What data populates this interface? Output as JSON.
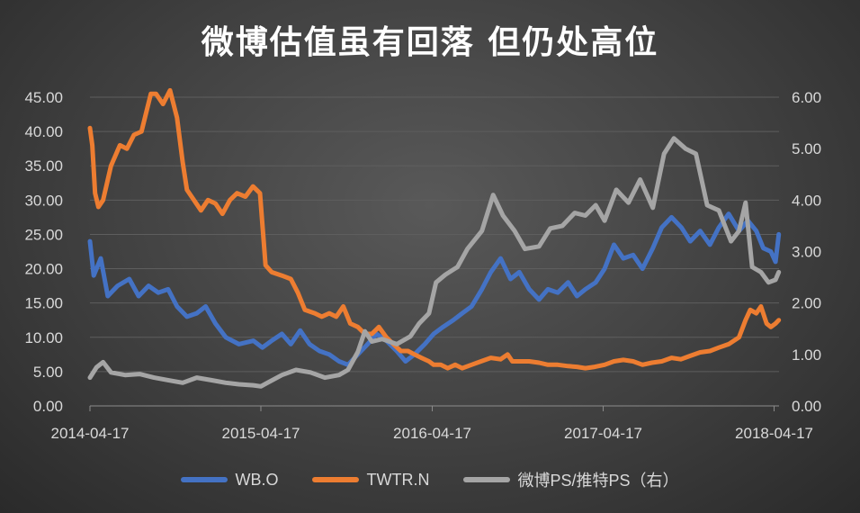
{
  "chart_data": {
    "type": "line",
    "title": "微博估值虽有回落 但仍处高位",
    "x_ticks": [
      "2014-04-17",
      "2015-04-17",
      "2016-04-17",
      "2017-04-17",
      "2018-04-17"
    ],
    "x_range": [
      "2014-04-17",
      "2018-04-27"
    ],
    "y_left": {
      "ticks": [
        "0.00",
        "5.00",
        "10.00",
        "15.00",
        "20.00",
        "25.00",
        "30.00",
        "35.00",
        "40.00",
        "45.00"
      ],
      "ylim": [
        0,
        45
      ]
    },
    "y_right": {
      "ticks": [
        "0.00",
        "1.00",
        "2.00",
        "3.00",
        "4.00",
        "5.00",
        "6.00"
      ],
      "ylim": [
        0,
        6
      ]
    },
    "grid": true,
    "legend_position": "bottom",
    "series": [
      {
        "name": "WB.O",
        "axis": "left",
        "color": "#4472C4",
        "points": [
          [
            "2014-04-17",
            24.0
          ],
          [
            "2014-04-25",
            19.0
          ],
          [
            "2014-05-10",
            21.5
          ],
          [
            "2014-05-25",
            16.0
          ],
          [
            "2014-06-15",
            17.5
          ],
          [
            "2014-07-10",
            18.5
          ],
          [
            "2014-07-30",
            16.0
          ],
          [
            "2014-08-20",
            17.5
          ],
          [
            "2014-09-10",
            16.5
          ],
          [
            "2014-10-01",
            17.0
          ],
          [
            "2014-10-20",
            14.5
          ],
          [
            "2014-11-10",
            13.0
          ],
          [
            "2014-12-01",
            13.5
          ],
          [
            "2014-12-20",
            14.5
          ],
          [
            "2015-01-10",
            12.0
          ],
          [
            "2015-02-01",
            10.0
          ],
          [
            "2015-03-01",
            9.0
          ],
          [
            "2015-04-01",
            9.5
          ],
          [
            "2015-04-20",
            8.5
          ],
          [
            "2015-05-10",
            9.5
          ],
          [
            "2015-06-01",
            10.5
          ],
          [
            "2015-06-20",
            9.0
          ],
          [
            "2015-07-10",
            11.0
          ],
          [
            "2015-07-30",
            9.0
          ],
          [
            "2015-08-20",
            8.0
          ],
          [
            "2015-09-10",
            7.5
          ],
          [
            "2015-10-01",
            6.5
          ],
          [
            "2015-10-20",
            6.0
          ],
          [
            "2015-11-10",
            7.5
          ],
          [
            "2015-12-01",
            9.0
          ],
          [
            "2015-12-20",
            10.5
          ],
          [
            "2016-01-10",
            9.5
          ],
          [
            "2016-02-01",
            8.0
          ],
          [
            "2016-02-20",
            6.5
          ],
          [
            "2016-03-10",
            7.5
          ],
          [
            "2016-04-01",
            9.0
          ],
          [
            "2016-04-20",
            10.5
          ],
          [
            "2016-05-10",
            11.5
          ],
          [
            "2016-06-01",
            12.5
          ],
          [
            "2016-06-20",
            13.5
          ],
          [
            "2016-07-10",
            14.5
          ],
          [
            "2016-08-01",
            17.0
          ],
          [
            "2016-08-20",
            19.5
          ],
          [
            "2016-09-10",
            21.5
          ],
          [
            "2016-10-01",
            18.5
          ],
          [
            "2016-10-20",
            19.5
          ],
          [
            "2016-11-10",
            17.0
          ],
          [
            "2016-12-01",
            15.5
          ],
          [
            "2016-12-20",
            17.0
          ],
          [
            "2017-01-10",
            16.5
          ],
          [
            "2017-02-01",
            18.0
          ],
          [
            "2017-02-20",
            16.0
          ],
          [
            "2017-03-10",
            17.0
          ],
          [
            "2017-04-01",
            18.0
          ],
          [
            "2017-04-20",
            20.0
          ],
          [
            "2017-05-10",
            23.5
          ],
          [
            "2017-05-30",
            21.5
          ],
          [
            "2017-06-20",
            22.0
          ],
          [
            "2017-07-10",
            20.0
          ],
          [
            "2017-08-01",
            23.0
          ],
          [
            "2017-08-20",
            26.0
          ],
          [
            "2017-09-10",
            27.5
          ],
          [
            "2017-10-01",
            26.0
          ],
          [
            "2017-10-20",
            24.0
          ],
          [
            "2017-11-10",
            25.5
          ],
          [
            "2017-12-01",
            23.5
          ],
          [
            "2017-12-20",
            26.0
          ],
          [
            "2018-01-10",
            28.0
          ],
          [
            "2018-02-01",
            25.5
          ],
          [
            "2018-02-20",
            27.0
          ],
          [
            "2018-03-10",
            25.5
          ],
          [
            "2018-03-25",
            23.0
          ],
          [
            "2018-04-10",
            22.5
          ],
          [
            "2018-04-20",
            21.0
          ],
          [
            "2018-04-27",
            25.0
          ]
        ]
      },
      {
        "name": "TWTR.N",
        "axis": "left",
        "color": "#ED7D31",
        "points": [
          [
            "2014-04-17",
            40.5
          ],
          [
            "2014-04-22",
            38.0
          ],
          [
            "2014-04-28",
            31.0
          ],
          [
            "2014-05-05",
            29.0
          ],
          [
            "2014-05-15",
            30.0
          ],
          [
            "2014-06-01",
            35.0
          ],
          [
            "2014-06-20",
            38.0
          ],
          [
            "2014-07-05",
            37.5
          ],
          [
            "2014-07-20",
            39.5
          ],
          [
            "2014-08-05",
            40.0
          ],
          [
            "2014-08-25",
            45.5
          ],
          [
            "2014-09-05",
            45.5
          ],
          [
            "2014-09-20",
            44.0
          ],
          [
            "2014-10-05",
            46.0
          ],
          [
            "2014-10-20",
            42.0
          ],
          [
            "2014-11-01",
            35.5
          ],
          [
            "2014-11-10",
            31.5
          ],
          [
            "2014-11-25",
            30.0
          ],
          [
            "2014-12-10",
            28.5
          ],
          [
            "2014-12-25",
            30.0
          ],
          [
            "2015-01-10",
            29.5
          ],
          [
            "2015-01-25",
            28.0
          ],
          [
            "2015-02-10",
            30.0
          ],
          [
            "2015-02-25",
            31.0
          ],
          [
            "2015-03-15",
            30.5
          ],
          [
            "2015-03-31",
            32.0
          ],
          [
            "2015-04-15",
            31.0
          ],
          [
            "2015-04-27",
            20.5
          ],
          [
            "2015-05-10",
            19.5
          ],
          [
            "2015-06-01",
            19.0
          ],
          [
            "2015-06-20",
            18.5
          ],
          [
            "2015-07-05",
            16.5
          ],
          [
            "2015-07-20",
            14.0
          ],
          [
            "2015-08-10",
            13.5
          ],
          [
            "2015-08-25",
            13.0
          ],
          [
            "2015-09-10",
            13.5
          ],
          [
            "2015-09-25",
            13.0
          ],
          [
            "2015-10-10",
            14.5
          ],
          [
            "2015-10-25",
            12.0
          ],
          [
            "2015-11-10",
            11.5
          ],
          [
            "2015-11-25",
            10.5
          ],
          [
            "2015-12-10",
            10.5
          ],
          [
            "2015-12-25",
            11.5
          ],
          [
            "2016-01-10",
            10.0
          ],
          [
            "2016-01-25",
            9.0
          ],
          [
            "2016-02-10",
            8.0
          ],
          [
            "2016-02-25",
            8.0
          ],
          [
            "2016-03-10",
            7.5
          ],
          [
            "2016-03-25",
            7.0
          ],
          [
            "2016-04-10",
            6.5
          ],
          [
            "2016-04-20",
            6.0
          ],
          [
            "2016-05-05",
            6.0
          ],
          [
            "2016-05-20",
            5.5
          ],
          [
            "2016-06-05",
            6.0
          ],
          [
            "2016-06-20",
            5.5
          ],
          [
            "2016-07-10",
            6.0
          ],
          [
            "2016-07-30",
            6.5
          ],
          [
            "2016-08-20",
            7.0
          ],
          [
            "2016-09-10",
            6.8
          ],
          [
            "2016-09-25",
            7.5
          ],
          [
            "2016-10-05",
            6.5
          ],
          [
            "2016-10-20",
            6.5
          ],
          [
            "2016-11-10",
            6.5
          ],
          [
            "2016-12-01",
            6.3
          ],
          [
            "2016-12-20",
            6.0
          ],
          [
            "2017-01-10",
            6.0
          ],
          [
            "2017-02-01",
            5.8
          ],
          [
            "2017-02-20",
            5.7
          ],
          [
            "2017-03-10",
            5.5
          ],
          [
            "2017-03-30",
            5.7
          ],
          [
            "2017-04-20",
            6.0
          ],
          [
            "2017-05-10",
            6.5
          ],
          [
            "2017-05-30",
            6.7
          ],
          [
            "2017-06-20",
            6.5
          ],
          [
            "2017-07-10",
            6.0
          ],
          [
            "2017-07-30",
            6.3
          ],
          [
            "2017-08-20",
            6.5
          ],
          [
            "2017-09-10",
            7.0
          ],
          [
            "2017-09-30",
            6.8
          ],
          [
            "2017-10-20",
            7.3
          ],
          [
            "2017-11-10",
            7.8
          ],
          [
            "2017-12-01",
            8.0
          ],
          [
            "2017-12-20",
            8.5
          ],
          [
            "2018-01-10",
            9.0
          ],
          [
            "2018-02-01",
            10.0
          ],
          [
            "2018-02-15",
            12.5
          ],
          [
            "2018-02-25",
            14.0
          ],
          [
            "2018-03-10",
            13.5
          ],
          [
            "2018-03-20",
            14.5
          ],
          [
            "2018-04-01",
            12.0
          ],
          [
            "2018-04-10",
            11.5
          ],
          [
            "2018-04-20",
            12.0
          ],
          [
            "2018-04-27",
            12.5
          ]
        ]
      },
      {
        "name": "微博PS/推特PS（右）",
        "axis": "right",
        "color": "#A5A5A5",
        "points": [
          [
            "2014-04-17",
            0.55
          ],
          [
            "2014-05-01",
            0.75
          ],
          [
            "2014-05-15",
            0.85
          ],
          [
            "2014-06-01",
            0.65
          ],
          [
            "2014-07-01",
            0.6
          ],
          [
            "2014-08-01",
            0.62
          ],
          [
            "2014-09-01",
            0.55
          ],
          [
            "2014-10-01",
            0.5
          ],
          [
            "2014-11-01",
            0.45
          ],
          [
            "2014-12-01",
            0.55
          ],
          [
            "2015-01-01",
            0.5
          ],
          [
            "2015-02-01",
            0.45
          ],
          [
            "2015-03-01",
            0.42
          ],
          [
            "2015-04-01",
            0.4
          ],
          [
            "2015-04-17",
            0.38
          ],
          [
            "2015-05-01",
            0.45
          ],
          [
            "2015-06-01",
            0.6
          ],
          [
            "2015-07-01",
            0.7
          ],
          [
            "2015-08-01",
            0.65
          ],
          [
            "2015-09-01",
            0.55
          ],
          [
            "2015-10-01",
            0.6
          ],
          [
            "2015-10-20",
            0.7
          ],
          [
            "2015-11-10",
            1.05
          ],
          [
            "2015-11-25",
            1.45
          ],
          [
            "2015-12-10",
            1.25
          ],
          [
            "2016-01-01",
            1.3
          ],
          [
            "2016-02-01",
            1.2
          ],
          [
            "2016-03-01",
            1.35
          ],
          [
            "2016-03-20",
            1.6
          ],
          [
            "2016-04-10",
            1.8
          ],
          [
            "2016-04-25",
            2.4
          ],
          [
            "2016-05-15",
            2.55
          ],
          [
            "2016-06-10",
            2.7
          ],
          [
            "2016-07-01",
            3.05
          ],
          [
            "2016-08-01",
            3.4
          ],
          [
            "2016-08-25",
            4.1
          ],
          [
            "2016-09-15",
            3.7
          ],
          [
            "2016-10-10",
            3.4
          ],
          [
            "2016-11-01",
            3.05
          ],
          [
            "2016-12-01",
            3.1
          ],
          [
            "2016-12-25",
            3.45
          ],
          [
            "2017-01-20",
            3.5
          ],
          [
            "2017-02-15",
            3.75
          ],
          [
            "2017-03-10",
            3.7
          ],
          [
            "2017-04-01",
            3.9
          ],
          [
            "2017-04-20",
            3.6
          ],
          [
            "2017-05-15",
            4.2
          ],
          [
            "2017-06-10",
            3.95
          ],
          [
            "2017-07-05",
            4.4
          ],
          [
            "2017-08-01",
            3.85
          ],
          [
            "2017-08-25",
            4.9
          ],
          [
            "2017-09-15",
            5.2
          ],
          [
            "2017-10-10",
            5.0
          ],
          [
            "2017-11-01",
            4.9
          ],
          [
            "2017-11-25",
            3.9
          ],
          [
            "2017-12-20",
            3.8
          ],
          [
            "2018-01-15",
            3.2
          ],
          [
            "2018-02-01",
            3.4
          ],
          [
            "2018-02-15",
            3.95
          ],
          [
            "2018-03-01",
            2.7
          ],
          [
            "2018-03-20",
            2.6
          ],
          [
            "2018-04-05",
            2.4
          ],
          [
            "2018-04-20",
            2.45
          ],
          [
            "2018-04-27",
            2.6
          ]
        ]
      }
    ]
  }
}
